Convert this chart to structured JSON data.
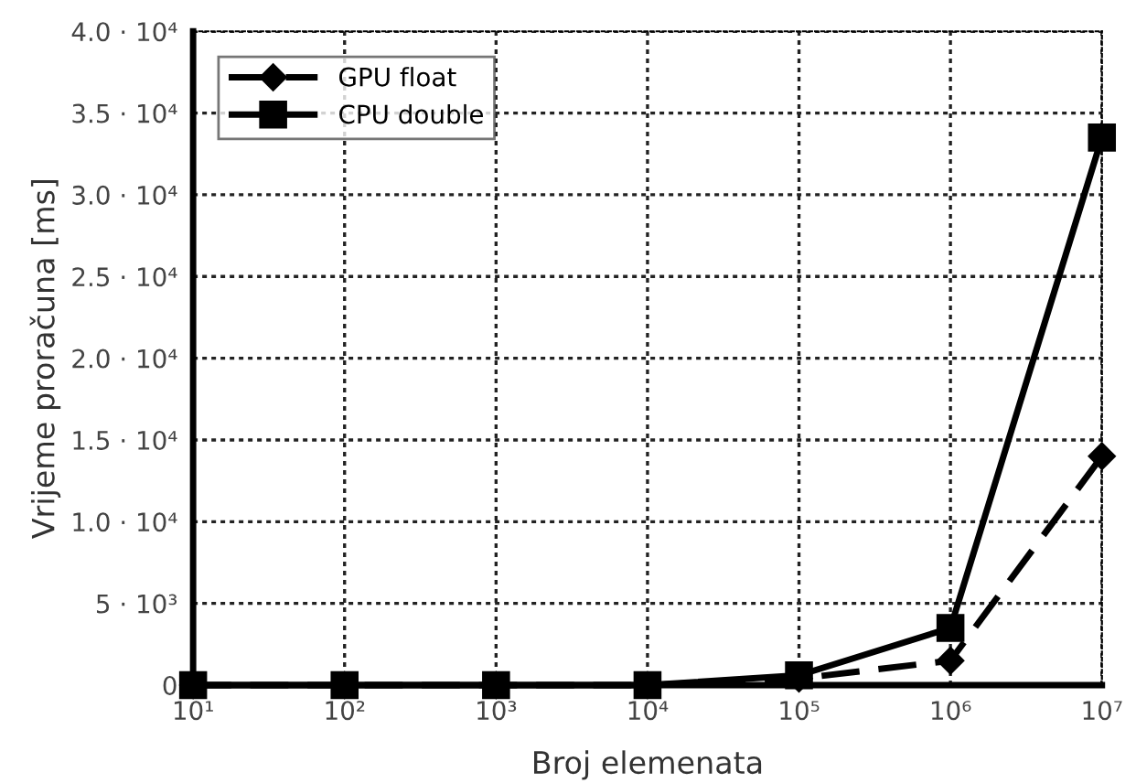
{
  "chart_data": {
    "type": "line",
    "xlabel": "Broj elemenata",
    "ylabel": "Vrijeme proračuna [ms]",
    "log": "x",
    "x": [
      10,
      100,
      1000,
      10000,
      100000,
      1000000,
      10000000
    ],
    "series": [
      {
        "name": "GPU float",
        "color": "#000000",
        "marker": "diamond",
        "line_style": "dashed",
        "values": [
          0,
          0,
          0,
          0,
          400,
          1500,
          14000
        ]
      },
      {
        "name": "CPU double",
        "color": "#000000",
        "marker": "square",
        "line_style": "solid",
        "values": [
          0,
          0,
          0,
          0,
          600,
          3500,
          33500
        ]
      }
    ],
    "xlim": [
      10,
      10000000
    ],
    "xticks": [
      {
        "value": 10,
        "label": "10¹"
      },
      {
        "value": 100,
        "label": "10²"
      },
      {
        "value": 1000,
        "label": "10³"
      },
      {
        "value": 10000,
        "label": "10⁴"
      },
      {
        "value": 100000,
        "label": "10⁵"
      },
      {
        "value": 1000000,
        "label": "10⁶"
      },
      {
        "value": 10000000,
        "label": "10⁷"
      }
    ],
    "ylim": [
      0,
      40000
    ],
    "yticks": [
      0,
      {
        "value": 5000,
        "label": "5 · 10³"
      },
      {
        "value": 10000,
        "label": "1.0 · 10⁴"
      },
      {
        "value": 15000,
        "label": "1.5 · 10⁴"
      },
      {
        "value": 20000,
        "label": "2.0 · 10⁴"
      },
      {
        "value": 25000,
        "label": "2.5 · 10⁴"
      },
      {
        "value": 30000,
        "label": "3.0 · 10⁴"
      },
      {
        "value": 35000,
        "label": "3.5 · 10⁴"
      },
      {
        "value": 40000,
        "label": "4.0 · 10⁴"
      }
    ],
    "grid": true,
    "legend": "top left"
  }
}
